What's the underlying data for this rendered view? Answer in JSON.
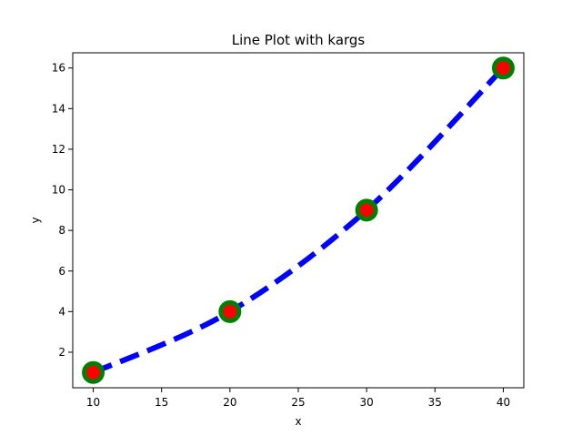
{
  "chart_data": {
    "type": "line",
    "title": "Line Plot with kargs",
    "xlabel": "x",
    "ylabel": "y",
    "xlim": [
      8.5,
      41.5
    ],
    "ylim": [
      0.25,
      16.75
    ],
    "xticks": [
      10,
      15,
      20,
      25,
      30,
      35,
      40
    ],
    "yticks": [
      2,
      4,
      6,
      8,
      10,
      12,
      14,
      16
    ],
    "grid": false,
    "series": [
      {
        "x": [
          10,
          20,
          30,
          40
        ],
        "values": [
          1,
          4,
          9,
          16
        ],
        "line_color": "#0000ff",
        "line_style": "dashed",
        "marker": "circle",
        "marker_edge_color": "#008000",
        "marker_face_color": "#ff0000"
      }
    ]
  }
}
